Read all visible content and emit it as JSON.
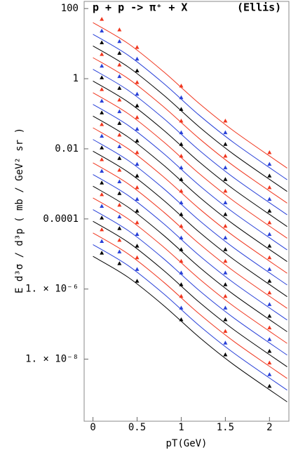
{
  "chart_data": {
    "type": "scatter",
    "title": "p + p -> π⁺ + X",
    "subtitle": "(Ellis)",
    "x_label": "pT(GeV)",
    "y_label": "E d³σ / d³p  ( mb / GeV² sr )",
    "log_y": true,
    "xlim": [
      -0.1,
      2.22
    ],
    "ylim": [
      1.7e-10,
      160
    ],
    "xticks": [
      0,
      0.5,
      1,
      1.5,
      2
    ],
    "yticks": [
      100,
      1,
      0.01,
      0.0001,
      {
        "value": 1e-06,
        "label": "1. × 10⁻⁶"
      },
      {
        "value": 1e-08,
        "label": "1. × 10⁻⁸"
      }
    ],
    "x": [
      0.1,
      0.3,
      0.5,
      1,
      1.5,
      2
    ],
    "curve_x": [
      0,
      0.4,
      0.8,
      1.2,
      1.6,
      2.2
    ],
    "series": [
      {
        "color": "#f0361e",
        "values": [
          50.1,
          25.1,
          7.94,
          0.631,
          0.0631,
          0.00794
        ],
        "fit": [
          39.8,
          10.0,
          1.58,
          0.2,
          0.0316,
          0.00282
        ]
      },
      {
        "color": "#2840d8",
        "values": [
          23.3,
          11.7,
          3.69,
          0.293,
          0.0293,
          0.00369
        ],
        "fit": [
          18.5,
          4.64,
          0.736,
          0.0926,
          0.0147,
          0.00131
        ]
      },
      {
        "color": "#000000",
        "values": [
          10.8,
          5.41,
          1.71,
          0.136,
          0.0136,
          0.00171
        ],
        "fit": [
          8.58,
          2.15,
          0.341,
          0.043,
          0.00681,
          0.000607
        ]
      },
      {
        "color": "#f0361e",
        "values": [
          5.01,
          2.51,
          0.794,
          0.0631,
          0.00631,
          0.000794
        ],
        "fit": [
          3.98,
          1.0,
          0.158,
          0.02,
          0.00316,
          0.000282
        ]
      },
      {
        "color": "#2840d8",
        "values": [
          2.33,
          1.17,
          0.369,
          0.0293,
          0.00293,
          0.000369
        ],
        "fit": [
          1.85,
          0.464,
          0.0736,
          0.00926,
          0.00147,
          0.000131
        ]
      },
      {
        "color": "#000000",
        "values": [
          1.08,
          0.541,
          0.171,
          0.0136,
          0.00136,
          0.000171
        ],
        "fit": [
          0.858,
          0.215,
          0.0341,
          0.0043,
          0.000681,
          6.07e-05
        ]
      },
      {
        "color": "#f0361e",
        "values": [
          0.501,
          0.251,
          0.0794,
          0.00631,
          0.000631,
          7.94e-05
        ],
        "fit": [
          0.398,
          0.1,
          0.0158,
          0.002,
          0.000316,
          2.82e-05
        ]
      },
      {
        "color": "#2840d8",
        "values": [
          0.233,
          0.117,
          0.0369,
          0.00293,
          0.000293,
          3.69e-05
        ],
        "fit": [
          0.185,
          0.0464,
          0.00736,
          0.000926,
          0.000147,
          1.31e-05
        ]
      },
      {
        "color": "#000000",
        "values": [
          0.108,
          0.0541,
          0.0171,
          0.00136,
          0.000136,
          1.71e-05
        ],
        "fit": [
          0.0858,
          0.0215,
          0.00341,
          0.00043,
          6.81e-05,
          6.07e-06
        ]
      },
      {
        "color": "#f0361e",
        "values": [
          0.0501,
          0.0251,
          0.00794,
          0.000631,
          6.31e-05,
          7.94e-06
        ],
        "fit": [
          0.0398,
          0.01,
          0.00158,
          0.0002,
          3.16e-05,
          2.82e-06
        ]
      },
      {
        "color": "#2840d8",
        "values": [
          0.0233,
          0.0117,
          0.00369,
          0.000293,
          2.93e-05,
          3.69e-06
        ],
        "fit": [
          0.0185,
          0.00464,
          0.000736,
          9.26e-05,
          1.47e-05,
          1.31e-06
        ]
      },
      {
        "color": "#000000",
        "values": [
          0.0108,
          0.00541,
          0.00171,
          0.000136,
          1.36e-05,
          1.71e-06
        ],
        "fit": [
          0.00858,
          0.00215,
          0.000341,
          4.3e-05,
          6.81e-06,
          6.07e-07
        ]
      },
      {
        "color": "#f0361e",
        "values": [
          0.00501,
          0.00251,
          0.000794,
          6.31e-05,
          6.31e-06,
          7.94e-07
        ],
        "fit": [
          0.00398,
          0.001,
          0.000158,
          2e-05,
          3.16e-06,
          2.82e-07
        ]
      },
      {
        "color": "#2840d8",
        "values": [
          0.00233,
          0.00117,
          0.000369,
          2.93e-05,
          2.93e-06,
          3.69e-07
        ],
        "fit": [
          0.00185,
          0.000464,
          7.36e-05,
          9.26e-06,
          1.47e-06,
          1.31e-07
        ]
      },
      {
        "color": "#000000",
        "values": [
          0.00108,
          0.000541,
          0.000171,
          1.36e-05,
          1.36e-06,
          1.71e-07
        ],
        "fit": [
          0.000858,
          0.000215,
          3.41e-05,
          4.3e-06,
          6.81e-07,
          6.07e-08
        ]
      },
      {
        "color": "#f0361e",
        "values": [
          0.000501,
          0.000251,
          7.94e-05,
          6.31e-06,
          6.31e-07,
          7.94e-08
        ],
        "fit": [
          0.000398,
          0.0001,
          1.58e-05,
          2e-06,
          3.16e-07,
          2.82e-08
        ]
      },
      {
        "color": "#2840d8",
        "values": [
          0.000233,
          0.000117,
          3.69e-05,
          2.93e-06,
          2.93e-07,
          3.69e-08
        ],
        "fit": [
          0.000185,
          4.64e-05,
          7.36e-06,
          9.26e-07,
          1.47e-07,
          1.31e-08
        ]
      },
      {
        "color": "#000000",
        "values": [
          0.000108,
          5.41e-05,
          1.71e-05,
          1.36e-06,
          1.36e-07,
          1.71e-08
        ],
        "fit": [
          8.58e-05,
          2.15e-05,
          3.41e-06,
          4.3e-07,
          6.81e-08,
          6.07e-09
        ]
      },
      {
        "color": "#f0361e",
        "values": [
          5.01e-05,
          2.51e-05,
          7.94e-06,
          6.31e-07,
          6.31e-08,
          7.94e-09
        ],
        "fit": [
          3.98e-05,
          1e-05,
          1.58e-06,
          2e-07,
          3.16e-08,
          2.82e-09
        ]
      },
      {
        "color": "#2840d8",
        "values": [
          2.33e-05,
          1.17e-05,
          3.69e-06,
          2.93e-07,
          2.93e-08,
          3.69e-09
        ],
        "fit": [
          1.85e-05,
          4.64e-06,
          7.36e-07,
          9.26e-08,
          1.47e-08,
          1.31e-09
        ]
      },
      {
        "color": "#000000",
        "values": [
          1.08e-05,
          5.41e-06,
          1.71e-06,
          1.36e-07,
          1.36e-08,
          1.71e-09
        ],
        "fit": [
          8.58e-06,
          2.15e-06,
          3.41e-07,
          4.3e-08,
          6.81e-09,
          6.07e-10
        ]
      }
    ]
  }
}
